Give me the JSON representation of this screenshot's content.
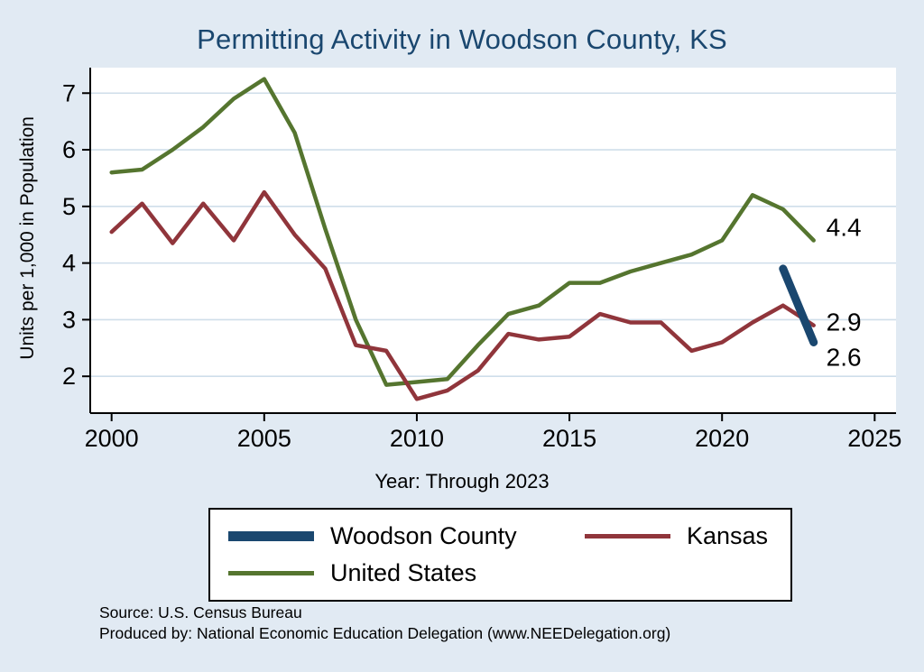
{
  "page": {
    "background": "#e1eaf3",
    "plot_background": "#ffffff",
    "grid_color": "#cfdeea",
    "axis_color": "#000000",
    "title_color": "#1a476f"
  },
  "chart_data": {
    "type": "line",
    "title": "Permitting Activity in Woodson County, KS",
    "xlabel": "Year: Through 2023",
    "ylabel": "Units per 1,000 in Population",
    "xlim": [
      1999.3,
      2025.7
    ],
    "ylim": [
      1.35,
      7.45
    ],
    "xticks": [
      2000,
      2005,
      2010,
      2015,
      2020,
      2025
    ],
    "yticks": [
      2,
      3,
      4,
      5,
      6,
      7
    ],
    "grid": "horizontal",
    "legend_position": "bottom",
    "series": [
      {
        "name": "United States",
        "color": "#55752f",
        "width": 4.5,
        "x": [
          2000,
          2001,
          2002,
          2003,
          2004,
          2005,
          2006,
          2007,
          2008,
          2009,
          2010,
          2011,
          2012,
          2013,
          2014,
          2015,
          2016,
          2017,
          2018,
          2019,
          2020,
          2021,
          2022,
          2023
        ],
        "values": [
          5.6,
          5.65,
          6.0,
          6.4,
          6.9,
          7.25,
          6.3,
          4.6,
          3.0,
          1.85,
          1.9,
          1.95,
          2.55,
          3.1,
          3.25,
          3.65,
          3.65,
          3.85,
          4.0,
          4.15,
          4.4,
          5.2,
          4.95,
          4.4
        ]
      },
      {
        "name": "Kansas",
        "color": "#90353b",
        "width": 4.5,
        "x": [
          2000,
          2001,
          2002,
          2003,
          2004,
          2005,
          2006,
          2007,
          2008,
          2009,
          2010,
          2011,
          2012,
          2013,
          2014,
          2015,
          2016,
          2017,
          2018,
          2019,
          2020,
          2021,
          2022,
          2023
        ],
        "values": [
          4.55,
          5.05,
          4.35,
          5.05,
          4.4,
          5.25,
          4.5,
          3.9,
          2.55,
          2.45,
          1.6,
          1.75,
          2.1,
          2.75,
          2.65,
          2.7,
          3.1,
          2.95,
          2.95,
          2.45,
          2.6,
          2.95,
          3.25,
          2.9
        ]
      },
      {
        "name": "Woodson County",
        "color": "#1a476f",
        "width": 9,
        "x": [
          2022,
          2023
        ],
        "values": [
          3.9,
          2.6
        ]
      }
    ],
    "end_labels": [
      {
        "text": "4.4",
        "v": 4.62
      },
      {
        "text": "2.9",
        "v": 2.95
      },
      {
        "text": "2.6",
        "v": 2.33
      }
    ]
  },
  "legend": {
    "items": [
      {
        "label": "Woodson County",
        "color": "#1a476f",
        "thick": true
      },
      {
        "label": "Kansas",
        "color": "#90353b",
        "thick": false
      },
      {
        "label": "United States",
        "color": "#55752f",
        "thick": false
      }
    ]
  },
  "footer": {
    "source": "Source: U.S. Census Bureau",
    "produced": "Produced by: National Economic Education Delegation (www.NEEDelegation.org)"
  }
}
